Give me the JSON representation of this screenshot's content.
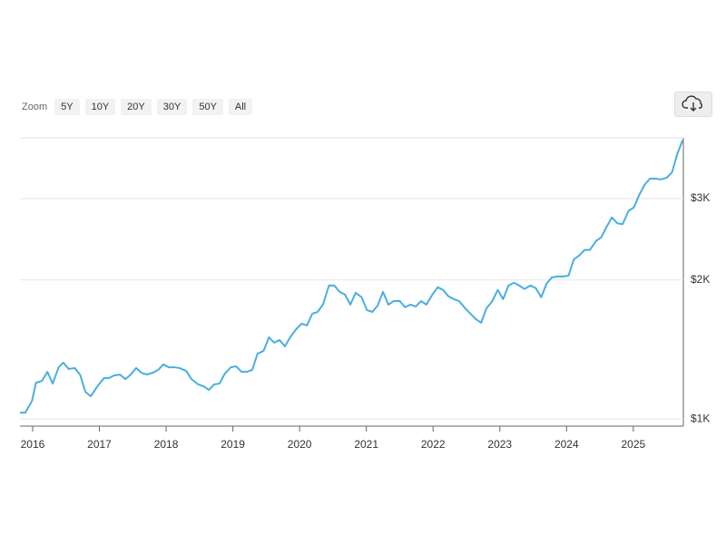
{
  "zoom": {
    "label": "Zoom",
    "options": [
      "5Y",
      "10Y",
      "20Y",
      "30Y",
      "50Y",
      "All"
    ]
  },
  "chart_data": {
    "type": "line",
    "log_scale": true,
    "grid": true,
    "color": "#4aaee0",
    "x": [
      2015.81,
      2015.89,
      2015.99,
      2016.05,
      2016.14,
      2016.22,
      2016.3,
      2016.39,
      2016.46,
      2016.54,
      2016.63,
      2016.71,
      2016.79,
      2016.87,
      2016.98,
      2017.07,
      2017.14,
      2017.22,
      2017.31,
      2017.39,
      2017.47,
      2017.55,
      2017.63,
      2017.71,
      2017.8,
      2017.88,
      2017.96,
      2018.04,
      2018.12,
      2018.2,
      2018.3,
      2018.38,
      2018.48,
      2018.56,
      2018.64,
      2018.72,
      2018.8,
      2018.88,
      2018.97,
      2019.05,
      2019.13,
      2019.21,
      2019.29,
      2019.37,
      2019.46,
      2019.54,
      2019.62,
      2019.7,
      2019.78,
      2019.86,
      2019.95,
      2020.03,
      2020.11,
      2020.19,
      2020.27,
      2020.35,
      2020.44,
      2020.52,
      2020.6,
      2020.68,
      2020.76,
      2020.84,
      2020.93,
      2021.01,
      2021.09,
      2021.17,
      2021.25,
      2021.33,
      2021.41,
      2021.5,
      2021.58,
      2021.66,
      2021.74,
      2021.82,
      2021.9,
      2021.99,
      2022.07,
      2022.15,
      2022.23,
      2022.31,
      2022.39,
      2022.48,
      2022.56,
      2022.64,
      2022.72,
      2022.8,
      2022.88,
      2022.97,
      2023.05,
      2023.13,
      2023.21,
      2023.29,
      2023.37,
      2023.46,
      2023.54,
      2023.62,
      2023.7,
      2023.78,
      2023.86,
      2023.95,
      2024.03,
      2024.11,
      2024.19,
      2024.27,
      2024.35,
      2024.44,
      2024.52,
      2024.6,
      2024.68,
      2024.76,
      2024.84,
      2024.93,
      2025.01,
      2025.09,
      2025.17,
      2025.25,
      2025.33,
      2025.41,
      2025.5,
      2025.58,
      2025.66,
      2025.74
    ],
    "values": [
      1032,
      1032,
      1094,
      1198,
      1209,
      1265,
      1193,
      1294,
      1324,
      1283,
      1289,
      1248,
      1145,
      1120,
      1182,
      1226,
      1226,
      1242,
      1248,
      1220,
      1248,
      1289,
      1259,
      1248,
      1259,
      1277,
      1312,
      1294,
      1294,
      1289,
      1271,
      1220,
      1188,
      1177,
      1156,
      1188,
      1193,
      1254,
      1294,
      1300,
      1265,
      1265,
      1277,
      1385,
      1404,
      1503,
      1463,
      1482,
      1436,
      1503,
      1565,
      1608,
      1594,
      1690,
      1705,
      1768,
      1945,
      1945,
      1884,
      1859,
      1768,
      1876,
      1834,
      1720,
      1705,
      1760,
      1884,
      1768,
      1800,
      1800,
      1745,
      1768,
      1752,
      1800,
      1768,
      1859,
      1928,
      1902,
      1843,
      1817,
      1800,
      1736,
      1690,
      1645,
      1616,
      1736,
      1792,
      1902,
      1817,
      1945,
      1972,
      1945,
      1911,
      1945,
      1919,
      1834,
      1963,
      2025,
      2034,
      2034,
      2043,
      2217,
      2258,
      2322,
      2322,
      2427,
      2472,
      2606,
      2730,
      2652,
      2640,
      2822,
      2870,
      3058,
      3213,
      3313,
      3313,
      3299,
      3327,
      3418,
      3748,
      4015
    ],
    "xlim": [
      2015.81,
      2025.75
    ],
    "xticks": [
      2016,
      2017,
      2018,
      2019,
      2020,
      2021,
      2022,
      2023,
      2024,
      2025
    ],
    "ylim": [
      965,
      4060
    ],
    "yticks": [
      {
        "value": 1000,
        "label": "$1K"
      },
      {
        "value": 2000,
        "label": "$2K"
      },
      {
        "value": 3000,
        "label": "$3K"
      }
    ]
  }
}
